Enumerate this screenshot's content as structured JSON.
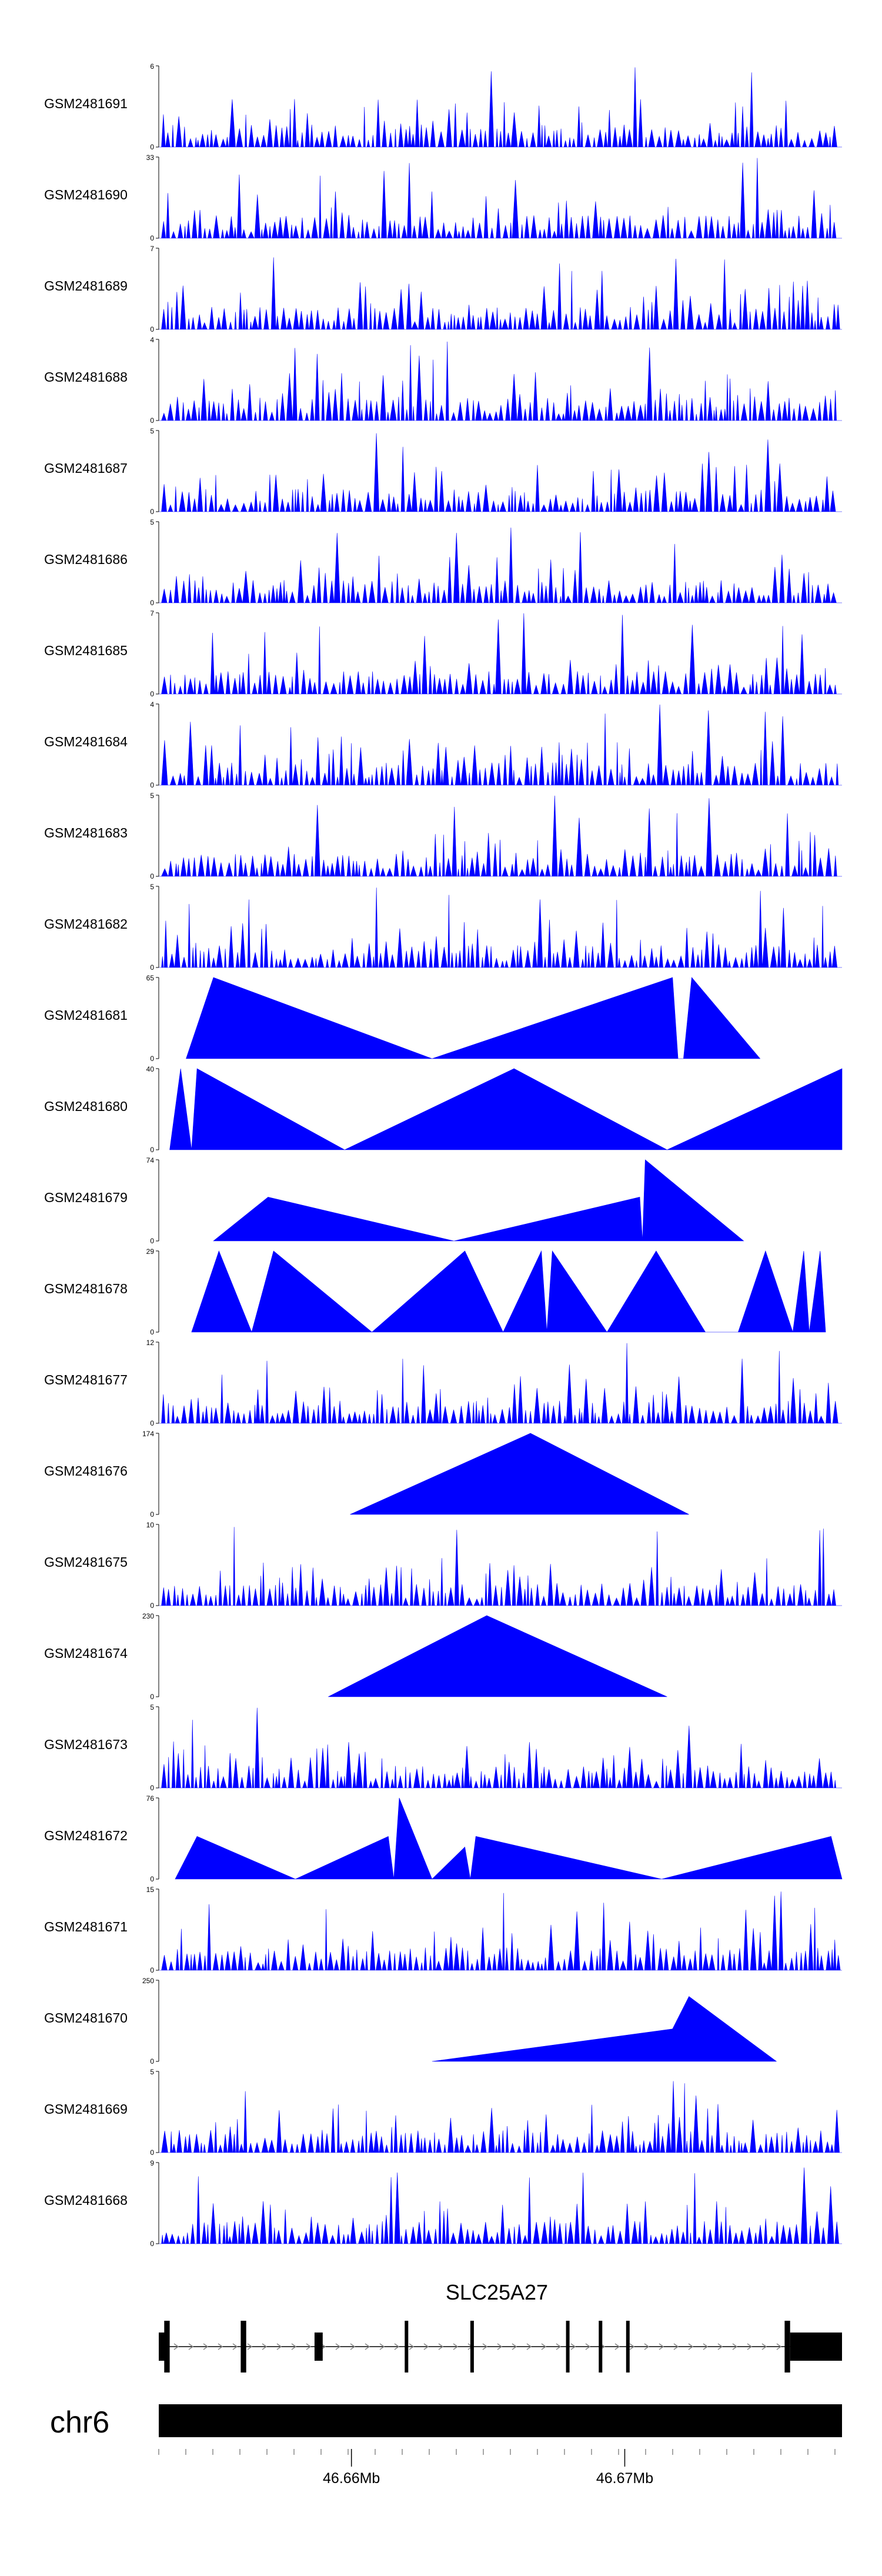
{
  "chart_data": {
    "type": "area",
    "fill_color": "#0000ff",
    "x_range_bp": [
      46652950,
      46677950
    ],
    "tracks": [
      {
        "name": "GSM2481691",
        "ymax": 6
      },
      {
        "name": "GSM2481690",
        "ymax": 33
      },
      {
        "name": "GSM2481689",
        "ymax": 7
      },
      {
        "name": "GSM2481688",
        "ymax": 4
      },
      {
        "name": "GSM2481687",
        "ymax": 5
      },
      {
        "name": "GSM2481686",
        "ymax": 5
      },
      {
        "name": "GSM2481685",
        "ymax": 7
      },
      {
        "name": "GSM2481684",
        "ymax": 4
      },
      {
        "name": "GSM2481683",
        "ymax": 5
      },
      {
        "name": "GSM2481682",
        "ymax": 5
      },
      {
        "name": "GSM2481681",
        "ymax": 65,
        "points": [
          [
            46653950,
            0
          ],
          [
            46654950,
            65
          ],
          [
            46662950,
            0
          ],
          [
            46671750,
            65
          ],
          [
            46671950,
            0
          ],
          [
            46672150,
            0
          ],
          [
            46672450,
            65
          ],
          [
            46674950,
            0
          ]
        ]
      },
      {
        "name": "GSM2481680",
        "ymax": 40,
        "points": [
          [
            46653350,
            0
          ],
          [
            46653750,
            40
          ],
          [
            46654150,
            0
          ],
          [
            46654350,
            40
          ],
          [
            46659750,
            0
          ],
          [
            46665950,
            40
          ],
          [
            46671550,
            0
          ],
          [
            46677950,
            40
          ],
          [
            46677950,
            0
          ]
        ]
      },
      {
        "name": "GSM2481679",
        "ymax": 74,
        "points": [
          [
            46654950,
            0
          ],
          [
            46656950,
            40
          ],
          [
            46663750,
            0
          ],
          [
            46670550,
            40
          ],
          [
            46670650,
            0
          ],
          [
            46670750,
            74
          ],
          [
            46674350,
            0
          ]
        ]
      },
      {
        "name": "GSM2481678",
        "ymax": 29,
        "points": [
          [
            46654150,
            0
          ],
          [
            46655150,
            29
          ],
          [
            46656350,
            0
          ],
          [
            46657150,
            29
          ],
          [
            46660750,
            0
          ],
          [
            46664150,
            29
          ],
          [
            46665550,
            0
          ],
          [
            46666950,
            29
          ],
          [
            46667150,
            0
          ],
          [
            46667350,
            29
          ],
          [
            46669350,
            0
          ],
          [
            46671150,
            29
          ],
          [
            46672950,
            0
          ],
          [
            46674150,
            0
          ],
          [
            46675150,
            29
          ],
          [
            46676150,
            0
          ],
          [
            46676550,
            29
          ],
          [
            46676750,
            0
          ],
          [
            46677150,
            29
          ],
          [
            46677350,
            0
          ]
        ]
      },
      {
        "name": "GSM2481677",
        "ymax": 12
      },
      {
        "name": "GSM2481676",
        "ymax": 174,
        "points": [
          [
            46659950,
            0
          ],
          [
            46666550,
            174
          ],
          [
            46672350,
            0
          ]
        ]
      },
      {
        "name": "GSM2481675",
        "ymax": 10
      },
      {
        "name": "GSM2481674",
        "ymax": 230,
        "points": [
          [
            46659150,
            0
          ],
          [
            46664950,
            230
          ],
          [
            46671550,
            0
          ]
        ]
      },
      {
        "name": "GSM2481673",
        "ymax": 5
      },
      {
        "name": "GSM2481672",
        "ymax": 76,
        "points": [
          [
            46653550,
            0
          ],
          [
            46654350,
            40
          ],
          [
            46657950,
            0
          ],
          [
            46661350,
            40
          ],
          [
            46661550,
            0
          ],
          [
            46661750,
            76
          ],
          [
            46662950,
            0
          ],
          [
            46664150,
            30
          ],
          [
            46664350,
            0
          ],
          [
            46664550,
            40
          ],
          [
            46671350,
            0
          ],
          [
            46677550,
            40
          ],
          [
            46677950,
            0
          ]
        ]
      },
      {
        "name": "GSM2481671",
        "ymax": 15
      },
      {
        "name": "GSM2481670",
        "ymax": 250,
        "points": [
          [
            46662950,
            0
          ],
          [
            46671750,
            100
          ],
          [
            46672350,
            200
          ],
          [
            46675550,
            0
          ]
        ]
      },
      {
        "name": "GSM2481669",
        "ymax": 5
      },
      {
        "name": "GSM2481668",
        "ymax": 9
      }
    ],
    "gene": {
      "name": "SLC25A27",
      "strand": "+",
      "exons_bp": [
        [
          46652950,
          46653250
        ],
        [
          46653150,
          46653350
        ],
        [
          46655950,
          46656150
        ],
        [
          46658650,
          46658950
        ],
        [
          46661950,
          46662050
        ],
        [
          46664350,
          46664450
        ],
        [
          46667850,
          46667950
        ],
        [
          46669050,
          46669150
        ],
        [
          46670050,
          46670150
        ],
        [
          46675850,
          46676050
        ],
        [
          46676050,
          46677950
        ]
      ]
    },
    "chromosome": {
      "name": "chr6",
      "ticks": [
        {
          "pos": 46660000,
          "label": "46.66Mb"
        },
        {
          "pos": 46670000,
          "label": "46.67Mb"
        }
      ]
    }
  }
}
